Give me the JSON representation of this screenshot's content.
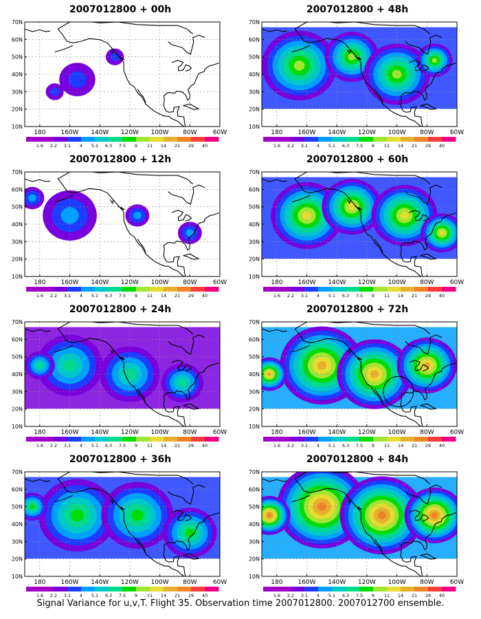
{
  "caption": "Signal Variance for u,v,T. Flight 35. Observation time 2007012800. 2007012700 ensemble.",
  "axes": {
    "lat_labels": [
      "70N",
      "60N",
      "50N",
      "40N",
      "30N",
      "20N",
      "10N"
    ],
    "lon_labels": [
      "180",
      "160W",
      "140W",
      "120W",
      "100W",
      "80W",
      "60W"
    ]
  },
  "colorbar": {
    "labels": [
      "1.6",
      "2.2",
      "3.1",
      "4",
      "5.1",
      "6.3",
      "7.5",
      "9",
      "11",
      "14",
      "21",
      "29",
      "40"
    ],
    "colors": [
      "#a000c8",
      "#7800dc",
      "#1e3cff",
      "#00a0ff",
      "#00c8c8",
      "#00dc8c",
      "#00dc00",
      "#a0e632",
      "#e6dc32",
      "#e6af2d",
      "#f08228",
      "#fa3c3c",
      "#f00082"
    ]
  },
  "panels": [
    {
      "title": "2007012800 + 00h",
      "level": 0
    },
    {
      "title": "2007012800 + 48h",
      "level": 0.55
    },
    {
      "title": "2007012800 + 12h",
      "level": 0.15
    },
    {
      "title": "2007012800 + 60h",
      "level": 0.62
    },
    {
      "title": "2007012800 + 24h",
      "level": 0.3
    },
    {
      "title": "2007012800 + 72h",
      "level": 0.75
    },
    {
      "title": "2007012800 + 36h",
      "level": 0.42
    },
    {
      "title": "2007012800 + 84h",
      "level": 0.85
    }
  ]
}
